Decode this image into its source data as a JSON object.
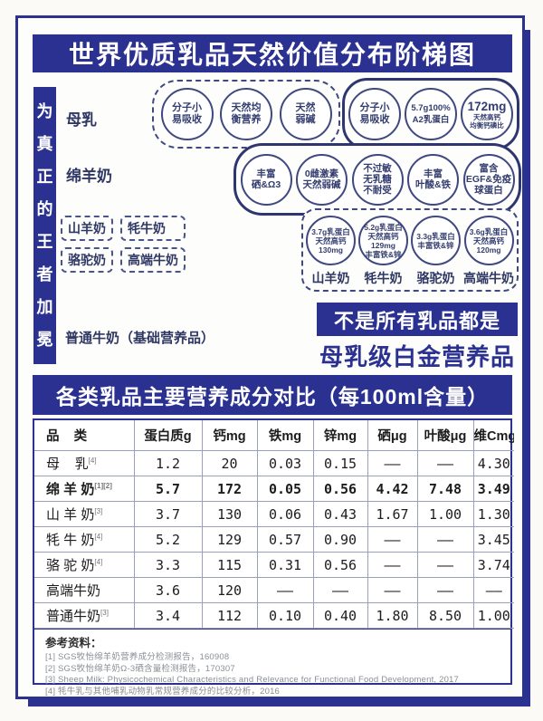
{
  "title": "世界优质乳品天然价值分布阶梯图",
  "sidebar_text": "为真正的王者加冕",
  "colors": {
    "navy": "#2b3191",
    "circle_border": "#3f4880",
    "text_dark": "#1c1c1c"
  },
  "ladder": {
    "steps": [
      {
        "label": "母乳"
      },
      {
        "label": "绵羊奶"
      },
      {
        "label_milks": [
          "山羊奶",
          "牦牛奶",
          "骆驼奶",
          "高端牛奶"
        ]
      },
      {
        "label": "普通牛奶（基础营养品）"
      }
    ]
  },
  "benefit_groups": [
    {
      "style": "dashed",
      "items": [
        {
          "lines": [
            "分子小",
            "易吸收"
          ]
        },
        {
          "lines": [
            "天然均",
            "衡营养"
          ]
        },
        {
          "lines": [
            "天然",
            "弱碱"
          ]
        }
      ]
    },
    {
      "style": "solid",
      "items": [
        {
          "lines": [
            "分子小",
            "易吸收"
          ]
        },
        {
          "lines": [
            "5.7g100%",
            "A2乳蛋白"
          ]
        },
        {
          "lines": [
            "172mg",
            "天然高钙",
            "均衡钙磷比"
          ]
        }
      ]
    },
    {
      "style": "solid",
      "items": [
        {
          "lines": [
            "丰富",
            "硒&Ω3"
          ]
        },
        {
          "lines": [
            "0雌激素",
            "天然弱碱"
          ]
        },
        {
          "lines": [
            "不过敏",
            "无乳糖",
            "不耐受"
          ]
        },
        {
          "lines": [
            "丰富",
            "叶酸&铁"
          ]
        },
        {
          "lines": [
            "富含",
            "EGF&免疫",
            "球蛋白"
          ]
        }
      ]
    },
    {
      "style": "dashed",
      "items": [
        {
          "lines": [
            "3.7g乳蛋白",
            "天然高钙",
            "130mg"
          ],
          "label": "山羊奶"
        },
        {
          "lines": [
            "5.2g乳蛋白",
            "天然高钙129mg",
            "丰富铁&锌"
          ],
          "label": "牦牛奶"
        },
        {
          "lines": [
            "3.3g乳蛋白",
            "丰富铁&锌"
          ],
          "label": "骆驼奶"
        },
        {
          "lines": [
            "3.6g乳蛋白",
            "天然高钙",
            "120mg"
          ],
          "label": "高端牛奶"
        }
      ]
    }
  ],
  "slogan": {
    "line1": "不是所有乳品都是",
    "line2": "母乳级白金营养品"
  },
  "table": {
    "title": "各类乳品主要营养成分对比（每100ml含量）",
    "headers": [
      "品    类",
      "蛋白质g",
      "钙mg",
      "铁mg",
      "锌mg",
      "硒μg",
      "叶酸μg",
      "维Cmg"
    ],
    "rows": [
      {
        "name": "母    乳",
        "sup": "[4]",
        "bold": false,
        "values": [
          "1.2",
          "20",
          "0.03",
          "0.15",
          "——",
          "——",
          "4.30"
        ]
      },
      {
        "name": "绵 羊 奶",
        "sup": "[1][2]",
        "bold": true,
        "values": [
          "5.7",
          "172",
          "0.05",
          "0.56",
          "4.42",
          "7.48",
          "3.49"
        ]
      },
      {
        "name": "山 羊 奶",
        "sup": "[3]",
        "bold": false,
        "values": [
          "3.7",
          "130",
          "0.06",
          "0.43",
          "1.67",
          "1.00",
          "1.30"
        ]
      },
      {
        "name": "牦 牛 奶",
        "sup": "[4]",
        "bold": false,
        "values": [
          "5.2",
          "129",
          "0.57",
          "0.90",
          "——",
          "——",
          "3.45"
        ]
      },
      {
        "name": "骆 驼 奶",
        "sup": "[4]",
        "bold": false,
        "values": [
          "3.3",
          "115",
          "0.31",
          "0.56",
          "——",
          "——",
          "3.74"
        ]
      },
      {
        "name": "高端牛奶",
        "sup": "",
        "bold": false,
        "values": [
          "3.6",
          "120",
          "——",
          "——",
          "——",
          "——",
          "——"
        ]
      },
      {
        "name": "普通牛奶",
        "sup": "[3]",
        "bold": false,
        "values": [
          "3.4",
          "112",
          "0.10",
          "0.40",
          "1.80",
          "8.50",
          "1.00"
        ]
      }
    ],
    "references_title": "参考资料：",
    "references": [
      "[1] SGS牧怡绵羊奶营养成分检测报告，160908",
      "[2] SGS牧怡绵羊奶Ω-3硒含量检测报告，170307",
      "[3] Sheep Milk: Physicochemical Characteristics and Relevance for Functional Food Development, 2017",
      "[4] 牦牛乳与其他哺乳动物乳常规营养成分的比较分析，2016"
    ]
  }
}
